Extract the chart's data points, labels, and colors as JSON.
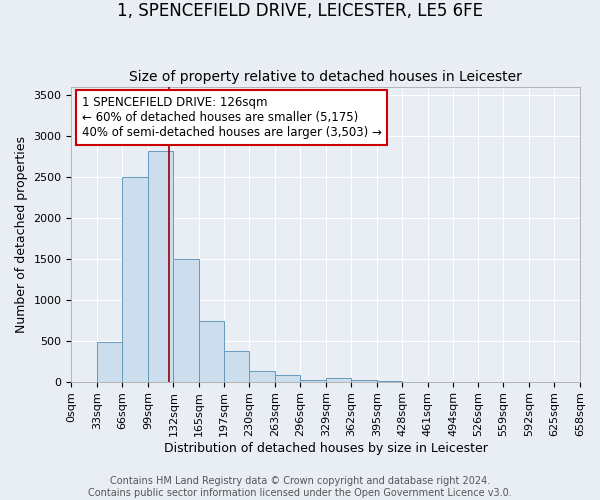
{
  "title": "1, SPENCEFIELD DRIVE, LEICESTER, LE5 6FE",
  "subtitle": "Size of property relative to detached houses in Leicester",
  "xlabel": "Distribution of detached houses by size in Leicester",
  "ylabel": "Number of detached properties",
  "bar_values": [
    0,
    480,
    2500,
    2820,
    1500,
    740,
    380,
    130,
    80,
    20,
    50,
    20,
    5,
    0,
    0,
    0,
    0,
    0,
    0,
    0
  ],
  "bin_edges": [
    0,
    33,
    66,
    99,
    132,
    165,
    197,
    230,
    263,
    296,
    329,
    362,
    395,
    428,
    461,
    494,
    526,
    559,
    592,
    625,
    658
  ],
  "tick_labels": [
    "0sqm",
    "33sqm",
    "66sqm",
    "99sqm",
    "132sqm",
    "165sqm",
    "197sqm",
    "230sqm",
    "263sqm",
    "296sqm",
    "329sqm",
    "362sqm",
    "395sqm",
    "428sqm",
    "461sqm",
    "494sqm",
    "526sqm",
    "559sqm",
    "592sqm",
    "625sqm",
    "658sqm"
  ],
  "bar_color": "#ccdded",
  "bar_edge_color": "#6699bb",
  "vline_x": 126,
  "vline_color": "#990000",
  "annotation_line1": "1 SPENCEFIELD DRIVE: 126sqm",
  "annotation_line2": "← 60% of detached houses are smaller (5,175)",
  "annotation_line3": "40% of semi-detached houses are larger (3,503) →",
  "annotation_box_color": "#ffffff",
  "annotation_box_edge": "#cc0000",
  "ylim": [
    0,
    3600
  ],
  "yticks": [
    0,
    500,
    1000,
    1500,
    2000,
    2500,
    3000,
    3500
  ],
  "background_color": "#e8eef4",
  "grid_color": "#ffffff",
  "title_fontsize": 12,
  "subtitle_fontsize": 10,
  "axis_label_fontsize": 9,
  "tick_fontsize": 8,
  "annotation_fontsize": 8.5,
  "footer_fontsize": 7,
  "footer_line1": "Contains HM Land Registry data © Crown copyright and database right 2024.",
  "footer_line2": "Contains public sector information licensed under the Open Government Licence v3.0."
}
